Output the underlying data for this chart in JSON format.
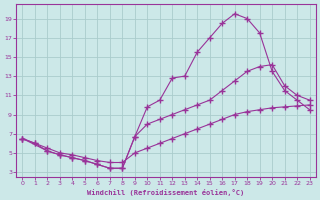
{
  "bg_color": "#cce8e8",
  "grid_color": "#aacccc",
  "line_color": "#993399",
  "xlabel": "Windchill (Refroidissement éolien,°C)",
  "xlim": [
    -0.5,
    23.5
  ],
  "ylim": [
    2.5,
    20.5
  ],
  "yticks": [
    3,
    5,
    7,
    9,
    11,
    13,
    15,
    17,
    19
  ],
  "xticks": [
    0,
    1,
    2,
    3,
    4,
    5,
    6,
    7,
    8,
    9,
    10,
    11,
    12,
    13,
    14,
    15,
    16,
    17,
    18,
    19,
    20,
    21,
    22,
    23
  ],
  "line1_x": [
    0,
    1,
    2,
    3,
    4,
    5,
    6,
    7,
    8,
    9,
    10,
    11,
    12,
    13,
    14,
    15,
    16,
    17,
    18,
    19,
    20,
    21,
    22,
    23
  ],
  "line1_y": [
    6.5,
    6.0,
    5.2,
    4.8,
    4.5,
    4.2,
    3.8,
    3.4,
    3.4,
    6.7,
    9.8,
    10.5,
    12.8,
    13.0,
    15.5,
    17.0,
    18.5,
    19.5,
    19.0,
    17.5,
    13.5,
    11.5,
    10.5,
    9.5
  ],
  "line2_x": [
    0,
    2,
    3,
    4,
    5,
    6,
    7,
    8,
    9,
    10,
    11,
    12,
    13,
    14,
    15,
    16,
    17,
    18,
    19,
    20,
    21,
    22,
    23
  ],
  "line2_y": [
    6.5,
    5.2,
    4.8,
    4.5,
    4.2,
    3.8,
    3.4,
    3.4,
    6.7,
    8.0,
    8.5,
    9.0,
    9.5,
    10.0,
    10.5,
    11.5,
    12.5,
    13.5,
    14.0,
    14.2,
    12.0,
    11.0,
    10.5
  ],
  "line3_x": [
    0,
    1,
    2,
    3,
    4,
    5,
    6,
    7,
    8,
    9,
    10,
    11,
    12,
    13,
    14,
    15,
    16,
    17,
    18,
    19,
    20,
    21,
    22,
    23
  ],
  "line3_y": [
    6.5,
    6.0,
    5.5,
    5.0,
    4.8,
    4.5,
    4.2,
    4.0,
    4.0,
    5.0,
    5.5,
    6.0,
    6.5,
    7.0,
    7.5,
    8.0,
    8.5,
    9.0,
    9.3,
    9.5,
    9.7,
    9.8,
    9.9,
    10.0
  ]
}
